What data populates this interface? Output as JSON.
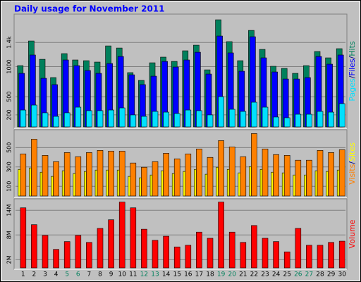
{
  "chart_data": [
    {
      "type": "bar",
      "title": "Daily usage for November 2011",
      "title_color": "#0000ff",
      "categories": [
        "1",
        "2",
        "3",
        "4",
        "5",
        "6",
        "7",
        "8",
        "9",
        "10",
        "11",
        "12",
        "13",
        "14",
        "15",
        "16",
        "17",
        "18",
        "19",
        "20",
        "21",
        "22",
        "23",
        "24",
        "25",
        "26",
        "27",
        "28",
        "29",
        "30"
      ],
      "category_colors": [
        "#000000",
        "#000000",
        "#000000",
        "#000000",
        "#00805c",
        "#00805c",
        "#000000",
        "#000000",
        "#000000",
        "#000000",
        "#000000",
        "#00805c",
        "#00805c",
        "#000000",
        "#000000",
        "#000000",
        "#000000",
        "#000000",
        "#00805c",
        "#00805c",
        "#000000",
        "#000000",
        "#000000",
        "#000000",
        "#000000",
        "#00805c",
        "#00805c",
        "#000000",
        "#000000",
        "#000000"
      ],
      "legend_separator": "/",
      "series": [
        {
          "name": "Pages",
          "color": "#00e0ff",
          "values": [
            280,
            362,
            234,
            175,
            234,
            327,
            269,
            269,
            280,
            315,
            199,
            175,
            257,
            245,
            222,
            280,
            269,
            199,
            502,
            292,
            257,
            409,
            327,
            164,
            152,
            210,
            210,
            257,
            245,
            386
          ]
        },
        {
          "name": "Files",
          "color": "#0000ff",
          "values": [
            888,
            1192,
            806,
            701,
            1110,
            1016,
            935,
            888,
            1051,
            1168,
            864,
            701,
            841,
            1086,
            993,
            1110,
            1238,
            876,
            1507,
            1227,
            923,
            1495,
            1145,
            911,
            794,
            794,
            818,
            1168,
            1040,
            1192
          ]
        },
        {
          "name": "Hits",
          "color": "#00805c",
          "values": [
            1016,
            1425,
            1121,
            818,
            1215,
            1110,
            1098,
            1075,
            1343,
            1308,
            900,
            771,
            1063,
            1157,
            1086,
            1262,
            1355,
            946,
            1776,
            1414,
            1098,
            1600,
            1285,
            1005,
            970,
            888,
            1016,
            1250,
            1145,
            1297
          ]
        }
      ],
      "ylim": [
        0,
        1800
      ],
      "yticks": [
        200,
        500,
        1000,
        {
          "value": 1400,
          "label": "1.4k"
        }
      ],
      "grid": true
    },
    {
      "type": "bar",
      "legend_separator": "/",
      "series": [
        {
          "name": "Visits",
          "color": "#ff8000",
          "values": [
            435,
            587,
            420,
            355,
            449,
            406,
            449,
            471,
            464,
            464,
            341,
            297,
            355,
            442,
            384,
            435,
            486,
            399,
            572,
            507,
            406,
            645,
            486,
            428,
            420,
            370,
            370,
            471,
            449,
            478
          ]
        },
        {
          "name": "Sites",
          "color": "#ffff00",
          "values": [
            275,
            290,
            246,
            203,
            261,
            232,
            254,
            268,
            268,
            268,
            203,
            188,
            217,
            261,
            232,
            254,
            275,
            225,
            297,
            275,
            239,
            304,
            275,
            246,
            239,
            217,
            217,
            261,
            254,
            268
          ]
        }
      ],
      "ylim": [
        0,
        670
      ],
      "yticks": [
        100,
        300,
        500
      ],
      "grid": true
    },
    {
      "type": "bar",
      "series": [
        {
          "name": "Volume",
          "color": "#ff0000",
          "values": [
            14600000,
            10500000,
            7900000,
            4500000,
            6400000,
            7900000,
            6200000,
            9600000,
            11700000,
            16000000,
            14600000,
            9400000,
            6700000,
            7700000,
            5100000,
            5500000,
            8700000,
            7200000,
            16000000,
            8700000,
            6200000,
            10300000,
            7200000,
            6400000,
            3900000,
            9600000,
            5500000,
            5500000,
            6200000,
            6500000
          ]
        }
      ],
      "ylim": [
        0,
        16100000
      ],
      "yticks": [
        {
          "value": 2000000,
          "label": "2M"
        },
        {
          "value": 8000000,
          "label": "8M"
        },
        {
          "value": 14000000,
          "label": "14M"
        }
      ],
      "grid": true
    }
  ]
}
